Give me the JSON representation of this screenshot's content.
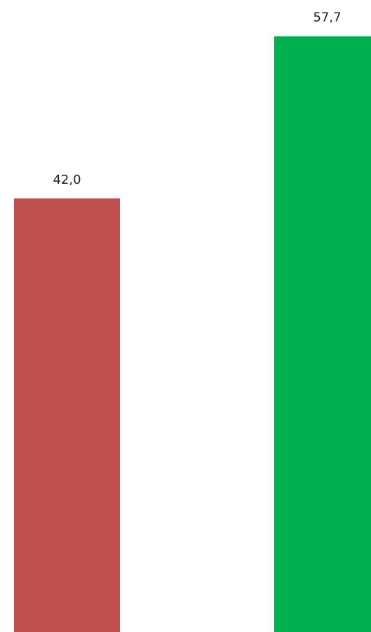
{
  "chart_data": {
    "type": "bar",
    "categories": [
      null,
      null
    ],
    "values": [
      42.0,
      57.7
    ],
    "value_labels": [
      "42,0",
      "57,7"
    ],
    "colors": [
      "#c0504d",
      "#00b050"
    ]
  }
}
